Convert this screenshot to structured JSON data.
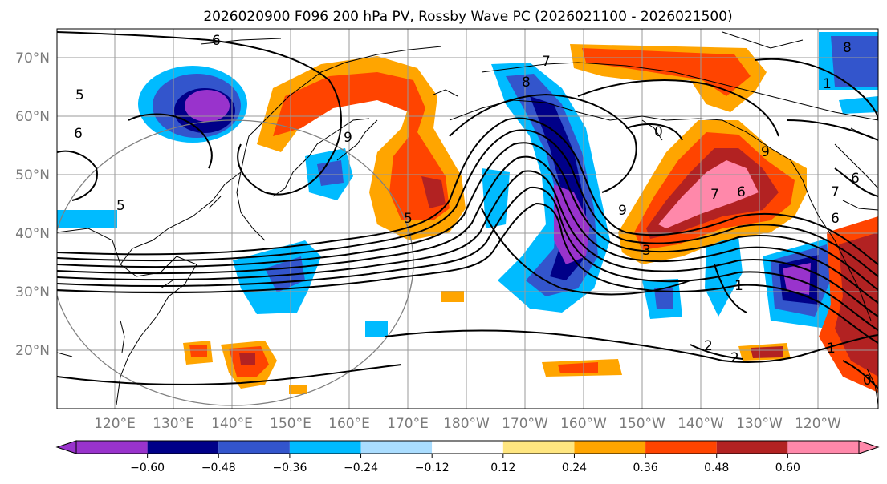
{
  "title": "2026020900 F096 200 hPa PV, Rossby Wave PC (2026021100 - 2026021500)",
  "map": {
    "lat_labels": [
      "70°N",
      "60°N",
      "50°N",
      "40°N",
      "30°N",
      "20°N"
    ],
    "lon_labels": [
      "120°E",
      "130°E",
      "140°E",
      "150°E",
      "160°E",
      "170°E",
      "180°W",
      "170°W",
      "160°W",
      "150°W",
      "140°W",
      "130°W",
      "120°W"
    ],
    "contour_labels": [
      "5",
      "6",
      "5",
      "6",
      "7",
      "8",
      "9",
      "9",
      "0",
      "5",
      "7",
      "6",
      "6",
      "9",
      "3",
      "1",
      "2",
      "2",
      "1",
      "8",
      "1",
      "7",
      "6",
      "0"
    ]
  },
  "colorbar": {
    "ticks": [
      "−0.60",
      "−0.48",
      "−0.36",
      "−0.24",
      "−0.12",
      "0.12",
      "0.24",
      "0.36",
      "0.48",
      "0.60"
    ],
    "colors": [
      "#9933cc",
      "#000088",
      "#3355cc",
      "#00bbff",
      "#aaddff",
      "#ffffff",
      "#ffe680",
      "#ffa500",
      "#ff4400",
      "#b22222",
      "#ff88aa",
      "#ff88aa"
    ]
  },
  "colors": {
    "grid": "#9a9a9a",
    "contour": "#000000",
    "coast": "#000000",
    "circle": "#808080"
  }
}
